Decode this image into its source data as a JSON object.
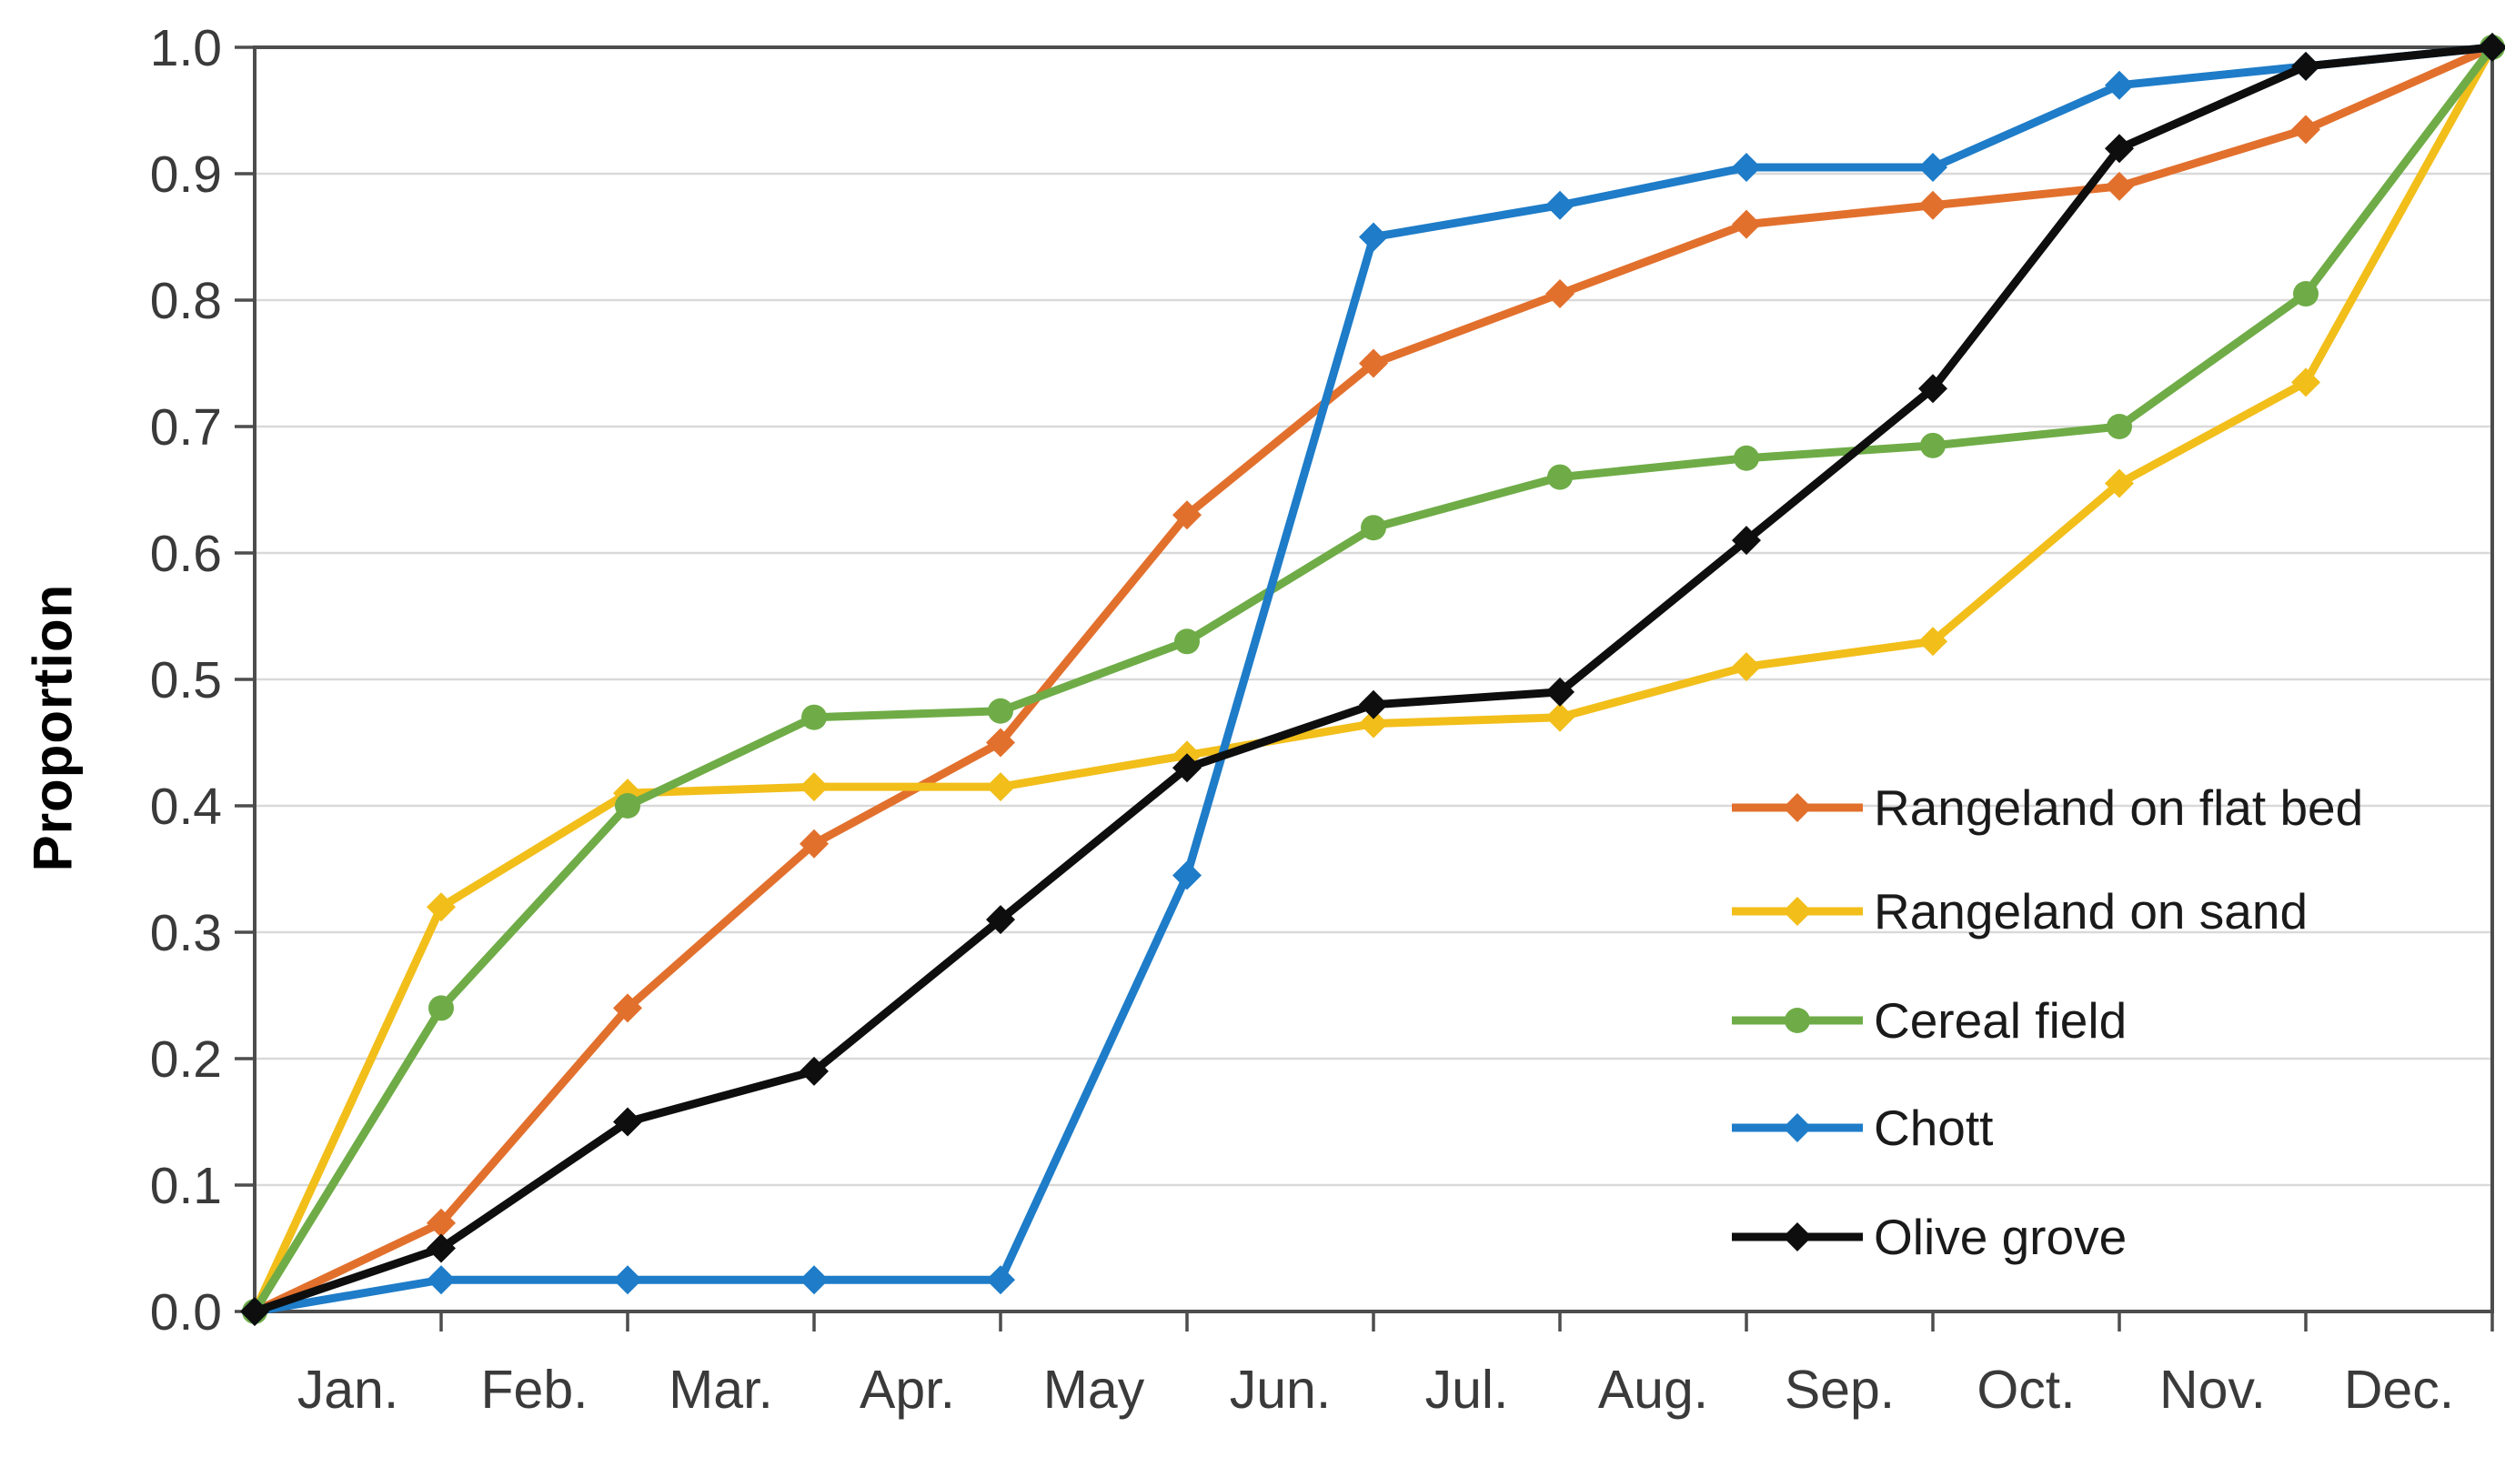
{
  "chart_data": {
    "type": "line",
    "title": "",
    "xlabel": "",
    "ylabel": "Proportion",
    "x_categories": [
      "Jan.",
      "Feb.",
      "Mar.",
      "Apr.",
      "May",
      "Jun.",
      "Jul.",
      "Aug.",
      "Sep.",
      "Oct.",
      "Nov.",
      "Dec."
    ],
    "y_tick_labels": [
      "0.0",
      "0.1",
      "0.2",
      "0.3",
      "0.4",
      "0.5",
      "0.6",
      "0.7",
      "0.8",
      "0.9",
      "1.0"
    ],
    "ylim": [
      0,
      1
    ],
    "grid": "horizontal-light",
    "legend_position": "inside-right",
    "values_note": "first value of each series is the origin point at the y-axis, followed by Jan..Dec",
    "series": [
      {
        "name": "Rangeland on flat bed",
        "color": "#E2702D",
        "marker": "diamond",
        "values": [
          0,
          0.07,
          0.24,
          0.37,
          0.45,
          0.63,
          0.75,
          0.805,
          0.86,
          0.875,
          0.89,
          0.935,
          1.0
        ]
      },
      {
        "name": "Rangeland on sand",
        "color": "#F2BE1A",
        "marker": "diamond",
        "values": [
          0,
          0.32,
          0.41,
          0.415,
          0.415,
          0.44,
          0.465,
          0.47,
          0.51,
          0.53,
          0.655,
          0.735,
          1.0
        ]
      },
      {
        "name": "Cereal field",
        "color": "#6FAC47",
        "marker": "circle",
        "values": [
          0,
          0.24,
          0.4,
          0.47,
          0.475,
          0.53,
          0.62,
          0.66,
          0.675,
          0.685,
          0.7,
          0.805,
          1.0
        ]
      },
      {
        "name": "Chott",
        "color": "#1E7CC8",
        "marker": "diamond",
        "values": [
          0,
          0.025,
          0.025,
          0.025,
          0.025,
          0.345,
          0.85,
          0.875,
          0.905,
          0.905,
          0.97,
          0.985,
          1.0
        ]
      },
      {
        "name": "Olive grove",
        "color": "#0E0E0E",
        "marker": "diamond",
        "values": [
          0,
          0.05,
          0.15,
          0.19,
          0.31,
          0.43,
          0.48,
          0.49,
          0.61,
          0.73,
          0.92,
          0.985,
          1.0
        ]
      }
    ],
    "colors": {
      "background": "#FFFFFF",
      "axis": "#4D4D4D",
      "gridline": "#D9D9D9",
      "tick_label": "#3A3A3A",
      "axis_title": "#000000",
      "legend_label": "#1A1A1A"
    }
  }
}
